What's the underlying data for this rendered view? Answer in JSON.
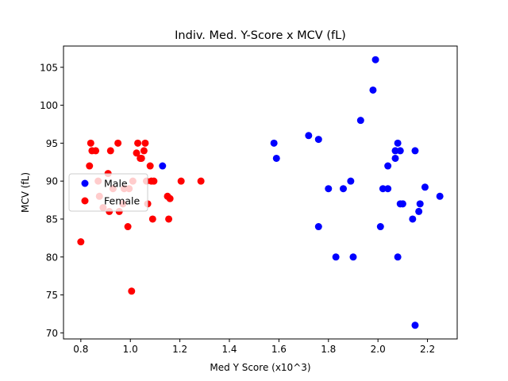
{
  "chart_data": {
    "type": "scatter",
    "title": "Indiv. Med. Y-Score x MCV (fL)",
    "xlabel": "Med Y Score (x10^3)",
    "ylabel": "MCV (fL)",
    "xlim": [
      0.73,
      2.32
    ],
    "ylim": [
      69.2,
      107.8
    ],
    "xticks": [
      "0.8",
      "1.0",
      "1.2",
      "1.4",
      "1.6",
      "1.8",
      "2.0",
      "2.2"
    ],
    "yticks": [
      "70",
      "75",
      "80",
      "85",
      "90",
      "95",
      "100",
      "105"
    ],
    "grid": false,
    "legend": {
      "position": "left",
      "entries": [
        "Male",
        "Female"
      ]
    },
    "series": [
      {
        "name": "Male",
        "color": "#0000ff",
        "points": [
          [
            1.13,
            92
          ],
          [
            1.58,
            95
          ],
          [
            1.59,
            93
          ],
          [
            1.72,
            96
          ],
          [
            1.76,
            95.5
          ],
          [
            1.76,
            84
          ],
          [
            1.8,
            89
          ],
          [
            1.83,
            80
          ],
          [
            1.86,
            89
          ],
          [
            1.89,
            90
          ],
          [
            1.9,
            80
          ],
          [
            1.93,
            98
          ],
          [
            1.98,
            102
          ],
          [
            1.99,
            106
          ],
          [
            2.01,
            84
          ],
          [
            2.02,
            89
          ],
          [
            2.04,
            89
          ],
          [
            2.04,
            92
          ],
          [
            2.07,
            94
          ],
          [
            2.07,
            93
          ],
          [
            2.08,
            95
          ],
          [
            2.08,
            80
          ],
          [
            2.09,
            94
          ],
          [
            2.09,
            87
          ],
          [
            2.1,
            87
          ],
          [
            2.14,
            85
          ],
          [
            2.15,
            94
          ],
          [
            2.15,
            71
          ],
          [
            2.165,
            86
          ],
          [
            2.17,
            87
          ],
          [
            2.19,
            89.2
          ],
          [
            2.25,
            88
          ]
        ]
      },
      {
        "name": "Female",
        "color": "#ff0000",
        "points": [
          [
            0.8,
            82
          ],
          [
            0.835,
            92
          ],
          [
            0.84,
            95
          ],
          [
            0.845,
            94
          ],
          [
            0.86,
            94
          ],
          [
            0.87,
            90
          ],
          [
            0.875,
            88
          ],
          [
            0.89,
            86.5
          ],
          [
            0.91,
            91
          ],
          [
            0.915,
            86
          ],
          [
            0.92,
            94
          ],
          [
            0.93,
            89
          ],
          [
            0.95,
            95
          ],
          [
            0.955,
            86
          ],
          [
            0.97,
            87
          ],
          [
            0.975,
            89
          ],
          [
            0.99,
            84
          ],
          [
            0.995,
            89
          ],
          [
            1.005,
            75.5
          ],
          [
            1.01,
            90
          ],
          [
            1.025,
            93.7
          ],
          [
            1.03,
            95
          ],
          [
            1.04,
            93
          ],
          [
            1.045,
            93
          ],
          [
            1.055,
            94
          ],
          [
            1.06,
            95
          ],
          [
            1.065,
            90
          ],
          [
            1.07,
            87
          ],
          [
            1.08,
            92
          ],
          [
            1.085,
            90
          ],
          [
            1.09,
            85
          ],
          [
            1.095,
            90
          ],
          [
            1.15,
            88
          ],
          [
            1.155,
            85
          ],
          [
            1.16,
            87.7
          ],
          [
            1.205,
            90
          ],
          [
            1.285,
            90
          ]
        ]
      }
    ]
  }
}
